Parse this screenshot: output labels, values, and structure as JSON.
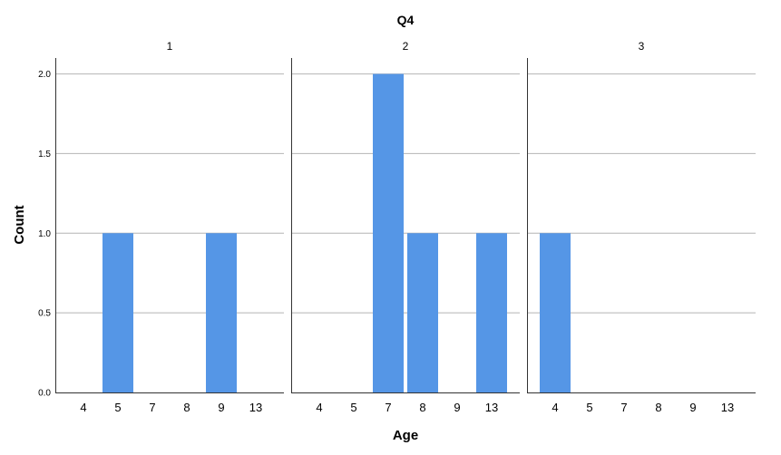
{
  "chart_data": {
    "type": "bar",
    "title": "Q4",
    "xlabel": "Age",
    "ylabel": "Count",
    "ylim": [
      0,
      2.1
    ],
    "yticks": [
      "0.0",
      "0.5",
      "1.0",
      "1.5",
      "2.0"
    ],
    "grid": true,
    "bar_color": "#5596e6",
    "categories": [
      "4",
      "5",
      "7",
      "8",
      "9",
      "13"
    ],
    "panels": [
      {
        "label": "1",
        "values": [
          0,
          1,
          0,
          0,
          1,
          0
        ]
      },
      {
        "label": "2",
        "values": [
          0,
          0,
          2,
          1,
          0,
          1
        ]
      },
      {
        "label": "3",
        "values": [
          1,
          0,
          0,
          0,
          0,
          0
        ]
      }
    ]
  }
}
